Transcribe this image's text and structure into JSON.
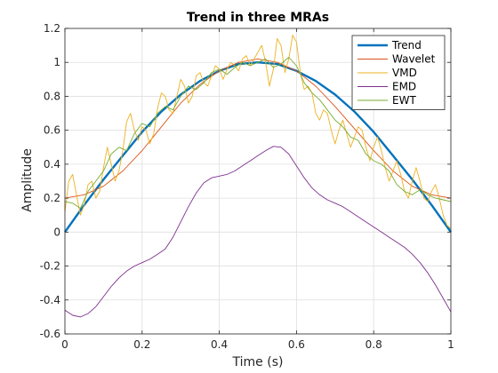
{
  "chart_data": {
    "type": "line",
    "title": "Trend in three MRAs",
    "xlabel": "Time (s)",
    "ylabel": "Amplitude",
    "xlim": [
      0,
      1
    ],
    "ylim": [
      -0.6,
      1.2
    ],
    "xticks": [
      0,
      0.2,
      0.4,
      0.6,
      0.8,
      1
    ],
    "xtick_labels": [
      "0",
      "0.2",
      "0.4",
      "0.6",
      "0.8",
      "1"
    ],
    "yticks": [
      -0.6,
      -0.4,
      -0.2,
      0,
      0.2,
      0.4,
      0.6,
      0.8,
      1,
      1.2
    ],
    "ytick_labels": [
      "-0.6",
      "-0.4",
      "-0.2",
      "0",
      "0.2",
      "0.4",
      "0.6",
      "0.8",
      "1",
      "1.2"
    ],
    "grid": true,
    "legend_position": "top-right",
    "series": [
      {
        "name": "Trend",
        "color": "#0072BD",
        "width": "thick",
        "x": [
          0,
          0.05,
          0.1,
          0.15,
          0.2,
          0.25,
          0.3,
          0.35,
          0.4,
          0.45,
          0.5,
          0.55,
          0.6,
          0.65,
          0.7,
          0.75,
          0.8,
          0.85,
          0.9,
          0.95,
          1
        ],
        "y": [
          0,
          0.16,
          0.31,
          0.45,
          0.59,
          0.71,
          0.81,
          0.89,
          0.95,
          0.99,
          1.0,
          0.99,
          0.95,
          0.89,
          0.81,
          0.71,
          0.59,
          0.45,
          0.31,
          0.16,
          0
        ]
      },
      {
        "name": "Wavelet",
        "color": "#D95319",
        "x": [
          0,
          0.05,
          0.1,
          0.15,
          0.2,
          0.25,
          0.3,
          0.35,
          0.4,
          0.45,
          0.5,
          0.55,
          0.6,
          0.65,
          0.7,
          0.75,
          0.8,
          0.85,
          0.9,
          0.95,
          1
        ],
        "y": [
          0.2,
          0.22,
          0.27,
          0.36,
          0.48,
          0.62,
          0.76,
          0.87,
          0.95,
          1.0,
          1.02,
          1.0,
          0.95,
          0.86,
          0.74,
          0.61,
          0.48,
          0.36,
          0.27,
          0.22,
          0.2
        ]
      },
      {
        "name": "VMD",
        "color": "#EDB120",
        "x": [
          0,
          0.01,
          0.02,
          0.03,
          0.04,
          0.05,
          0.06,
          0.07,
          0.08,
          0.09,
          0.1,
          0.11,
          0.12,
          0.13,
          0.14,
          0.15,
          0.16,
          0.17,
          0.18,
          0.19,
          0.2,
          0.21,
          0.22,
          0.23,
          0.24,
          0.25,
          0.26,
          0.27,
          0.28,
          0.29,
          0.3,
          0.31,
          0.32,
          0.33,
          0.34,
          0.35,
          0.36,
          0.37,
          0.38,
          0.39,
          0.4,
          0.41,
          0.42,
          0.43,
          0.44,
          0.45,
          0.46,
          0.47,
          0.48,
          0.49,
          0.5,
          0.51,
          0.52,
          0.53,
          0.54,
          0.55,
          0.56,
          0.57,
          0.58,
          0.59,
          0.6,
          0.61,
          0.62,
          0.63,
          0.64,
          0.65,
          0.66,
          0.67,
          0.68,
          0.69,
          0.7,
          0.71,
          0.72,
          0.73,
          0.74,
          0.75,
          0.76,
          0.77,
          0.78,
          0.79,
          0.8,
          0.81,
          0.82,
          0.83,
          0.84,
          0.85,
          0.86,
          0.87,
          0.88,
          0.89,
          0.9,
          0.91,
          0.92,
          0.93,
          0.94,
          0.95,
          0.96,
          0.97,
          0.98,
          0.99,
          1
        ],
        "y": [
          0.12,
          0.3,
          0.34,
          0.22,
          0.1,
          0.16,
          0.28,
          0.3,
          0.2,
          0.24,
          0.38,
          0.5,
          0.4,
          0.3,
          0.36,
          0.48,
          0.65,
          0.7,
          0.6,
          0.54,
          0.62,
          0.6,
          0.52,
          0.58,
          0.73,
          0.82,
          0.8,
          0.72,
          0.7,
          0.8,
          0.9,
          0.86,
          0.76,
          0.8,
          0.92,
          0.94,
          0.88,
          0.86,
          0.92,
          0.98,
          0.96,
          0.9,
          0.96,
          1.0,
          0.98,
          0.95,
          1.02,
          1.04,
          0.98,
          1.02,
          1.06,
          1.1,
          1.0,
          0.86,
          0.96,
          1.14,
          1.1,
          0.94,
          1.02,
          1.16,
          1.12,
          0.94,
          0.84,
          0.86,
          0.82,
          0.7,
          0.66,
          0.72,
          0.7,
          0.6,
          0.52,
          0.6,
          0.66,
          0.58,
          0.5,
          0.56,
          0.62,
          0.6,
          0.5,
          0.42,
          0.5,
          0.56,
          0.48,
          0.38,
          0.3,
          0.36,
          0.42,
          0.34,
          0.24,
          0.2,
          0.3,
          0.38,
          0.3,
          0.2,
          0.18,
          0.24,
          0.28,
          0.2,
          0.1,
          0.04,
          0.02
        ]
      },
      {
        "name": "EMD",
        "color": "#7E2F8E",
        "x": [
          0,
          0.02,
          0.04,
          0.06,
          0.08,
          0.1,
          0.12,
          0.14,
          0.16,
          0.18,
          0.2,
          0.22,
          0.24,
          0.26,
          0.28,
          0.3,
          0.32,
          0.34,
          0.36,
          0.38,
          0.4,
          0.42,
          0.44,
          0.46,
          0.48,
          0.5,
          0.52,
          0.54,
          0.56,
          0.58,
          0.6,
          0.62,
          0.64,
          0.66,
          0.68,
          0.7,
          0.72,
          0.74,
          0.76,
          0.78,
          0.8,
          0.82,
          0.84,
          0.86,
          0.88,
          0.9,
          0.92,
          0.94,
          0.96,
          0.98,
          1
        ],
        "y": [
          -0.46,
          -0.49,
          -0.5,
          -0.48,
          -0.44,
          -0.38,
          -0.32,
          -0.27,
          -0.23,
          -0.2,
          -0.18,
          -0.16,
          -0.13,
          -0.1,
          -0.03,
          0.06,
          0.15,
          0.23,
          0.29,
          0.32,
          0.33,
          0.34,
          0.36,
          0.39,
          0.42,
          0.45,
          0.48,
          0.505,
          0.5,
          0.46,
          0.39,
          0.32,
          0.26,
          0.22,
          0.19,
          0.17,
          0.15,
          0.12,
          0.09,
          0.06,
          0.03,
          0.0,
          -0.03,
          -0.06,
          -0.09,
          -0.13,
          -0.18,
          -0.24,
          -0.31,
          -0.39,
          -0.47
        ]
      },
      {
        "name": "EWT",
        "color": "#77AC30",
        "x": [
          0,
          0.02,
          0.04,
          0.06,
          0.08,
          0.1,
          0.12,
          0.14,
          0.16,
          0.18,
          0.2,
          0.22,
          0.24,
          0.26,
          0.28,
          0.3,
          0.32,
          0.34,
          0.36,
          0.38,
          0.4,
          0.42,
          0.44,
          0.46,
          0.48,
          0.5,
          0.52,
          0.54,
          0.56,
          0.58,
          0.6,
          0.62,
          0.64,
          0.66,
          0.68,
          0.7,
          0.72,
          0.74,
          0.76,
          0.78,
          0.8,
          0.82,
          0.84,
          0.86,
          0.88,
          0.9,
          0.92,
          0.94,
          0.96,
          0.98,
          1
        ],
        "y": [
          0.18,
          0.17,
          0.14,
          0.24,
          0.3,
          0.36,
          0.46,
          0.5,
          0.48,
          0.58,
          0.64,
          0.62,
          0.7,
          0.74,
          0.72,
          0.8,
          0.86,
          0.84,
          0.88,
          0.94,
          0.96,
          0.93,
          0.97,
          1.0,
          0.98,
          1.0,
          1.02,
          0.97,
          0.99,
          1.03,
          0.98,
          0.88,
          0.82,
          0.78,
          0.72,
          0.66,
          0.62,
          0.56,
          0.54,
          0.46,
          0.42,
          0.4,
          0.36,
          0.28,
          0.24,
          0.22,
          0.25,
          0.22,
          0.2,
          0.19,
          0.18
        ]
      }
    ]
  }
}
